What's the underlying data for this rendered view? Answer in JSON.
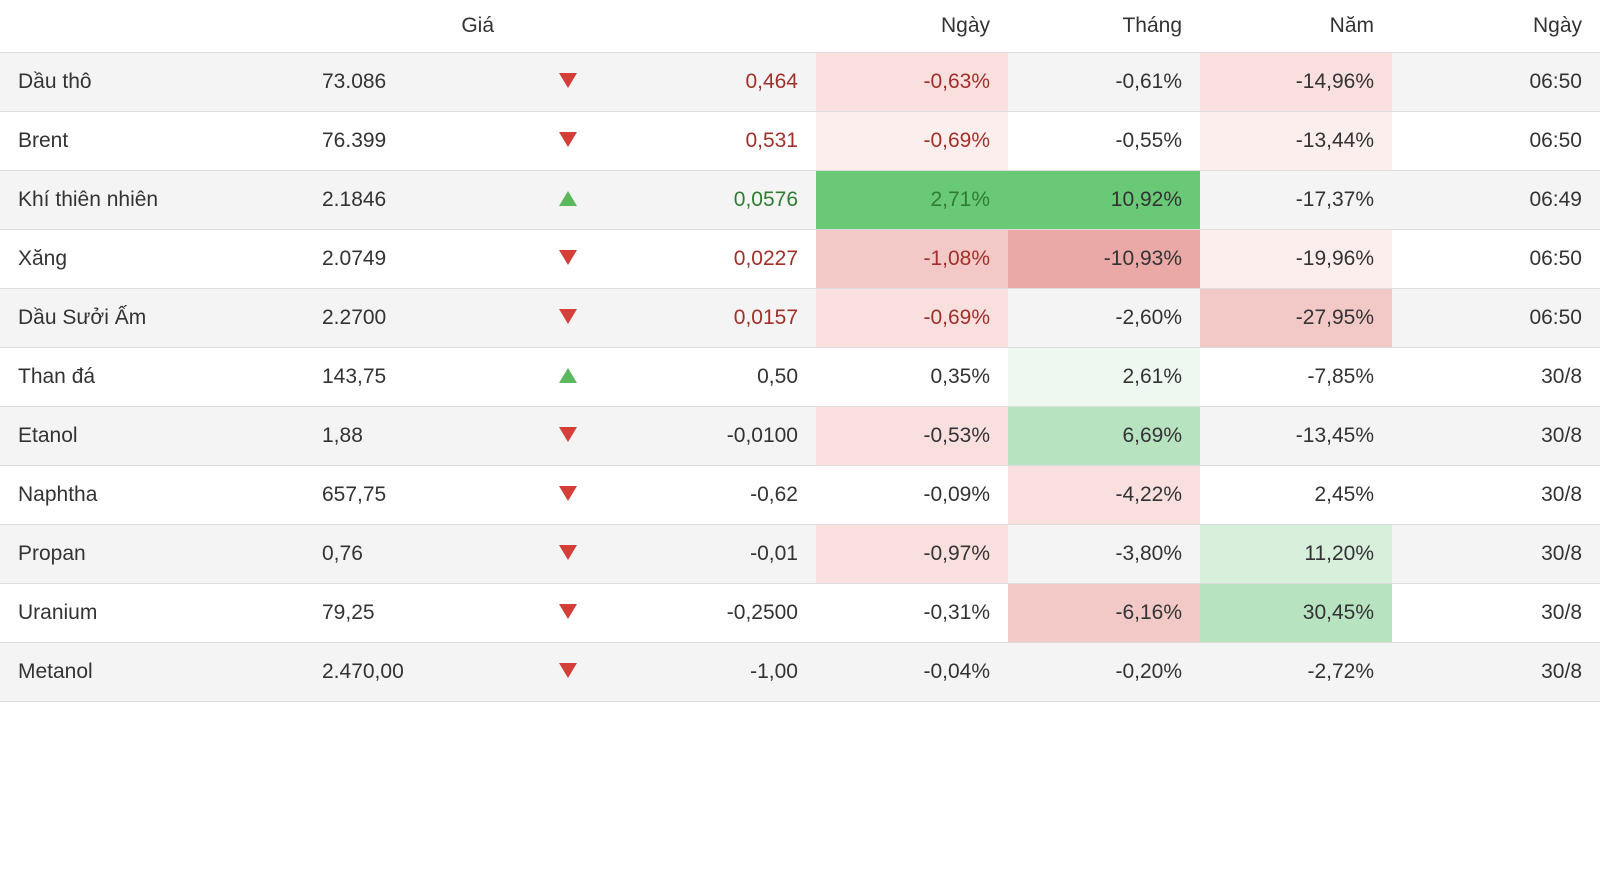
{
  "table": {
    "type": "table",
    "columns": {
      "name": {
        "label": "",
        "width_pct": 19,
        "align": "left"
      },
      "price": {
        "label": "Giá",
        "width_pct": 13,
        "align": "left"
      },
      "dir": {
        "label": "",
        "width_pct": 7,
        "align": "center"
      },
      "change": {
        "label": "",
        "width_pct": 12,
        "align": "right"
      },
      "day": {
        "label": "Ngày",
        "width_pct": 12,
        "align": "right"
      },
      "month": {
        "label": "Tháng",
        "width_pct": 12,
        "align": "right"
      },
      "year": {
        "label": "Năm",
        "width_pct": 12,
        "align": "right"
      },
      "date": {
        "label": "Ngày",
        "width_pct": 13,
        "align": "right"
      }
    },
    "colors": {
      "up_arrow": "#5cb85c",
      "down_arrow": "#d43f3a",
      "text_red": "#a12f2a",
      "text_green": "#2e7d32",
      "row_even_bg": "#f4f4f4",
      "row_odd_bg": "#ffffff",
      "border": "#dddddd",
      "heat": {
        "neg_faint": "#fdeeee",
        "neg_light": "#f9e0df",
        "neg_med": "#f3c9c7",
        "neg_strong": "#eaa9a6",
        "pos_faint": "#eef8f0",
        "pos_light": "#d7efdb",
        "pos_med": "#b7e3c0",
        "pos_strong": "#69c976"
      }
    },
    "rows": [
      {
        "name": "Dầu thô",
        "price": "73.086",
        "dir": "down",
        "change": "0,464",
        "change_color": "red",
        "day": {
          "v": "-0,63%",
          "bg": "#f9e0df",
          "fg": "#a12f2a"
        },
        "month": {
          "v": "-0,61%",
          "bg": null,
          "fg": null
        },
        "year": {
          "v": "-14,96%",
          "bg": "#f9e0df",
          "fg": null
        },
        "date": "06:50"
      },
      {
        "name": "Brent",
        "price": "76.399",
        "dir": "down",
        "change": "0,531",
        "change_color": "red",
        "day": {
          "v": "-0,69%",
          "bg": "#fdeeee",
          "fg": "#a12f2a"
        },
        "month": {
          "v": "-0,55%",
          "bg": null,
          "fg": null
        },
        "year": {
          "v": "-13,44%",
          "bg": "#fdeeee",
          "fg": null
        },
        "date": "06:50"
      },
      {
        "name": "Khí thiên nhiên",
        "price": "2.1846",
        "dir": "up",
        "change": "0,0576",
        "change_color": "green",
        "day": {
          "v": "2,71%",
          "bg": "#69c976",
          "fg": "#2e7d32"
        },
        "month": {
          "v": "10,92%",
          "bg": "#69c976",
          "fg": null
        },
        "year": {
          "v": "-17,37%",
          "bg": null,
          "fg": null
        },
        "date": "06:49"
      },
      {
        "name": "Xăng",
        "price": "2.0749",
        "dir": "down",
        "change": "0,0227",
        "change_color": "red",
        "day": {
          "v": "-1,08%",
          "bg": "#f3c9c7",
          "fg": "#a12f2a"
        },
        "month": {
          "v": "-10,93%",
          "bg": "#eaa9a6",
          "fg": null
        },
        "year": {
          "v": "-19,96%",
          "bg": "#fdeeee",
          "fg": null
        },
        "date": "06:50"
      },
      {
        "name": "Dầu Sưởi Ấm",
        "price": "2.2700",
        "dir": "down",
        "change": "0,0157",
        "change_color": "red",
        "day": {
          "v": "-0,69%",
          "bg": "#f9e0df",
          "fg": "#a12f2a"
        },
        "month": {
          "v": "-2,60%",
          "bg": null,
          "fg": null
        },
        "year": {
          "v": "-27,95%",
          "bg": "#f3c9c7",
          "fg": null
        },
        "date": "06:50"
      },
      {
        "name": "Than đá",
        "price": "143,75",
        "dir": "up",
        "change": "0,50",
        "change_color": null,
        "day": {
          "v": "0,35%",
          "bg": null,
          "fg": null
        },
        "month": {
          "v": "2,61%",
          "bg": "#eef8f0",
          "fg": null
        },
        "year": {
          "v": "-7,85%",
          "bg": null,
          "fg": null
        },
        "date": "30/8"
      },
      {
        "name": "Etanol",
        "price": "1,88",
        "dir": "down",
        "change": "-0,0100",
        "change_color": null,
        "day": {
          "v": "-0,53%",
          "bg": "#f9e0df",
          "fg": null
        },
        "month": {
          "v": "6,69%",
          "bg": "#b7e3c0",
          "fg": null
        },
        "year": {
          "v": "-13,45%",
          "bg": null,
          "fg": null
        },
        "date": "30/8"
      },
      {
        "name": "Naphtha",
        "price": "657,75",
        "dir": "down",
        "change": "-0,62",
        "change_color": null,
        "day": {
          "v": "-0,09%",
          "bg": null,
          "fg": null
        },
        "month": {
          "v": "-4,22%",
          "bg": "#f9e0df",
          "fg": null
        },
        "year": {
          "v": "2,45%",
          "bg": null,
          "fg": null
        },
        "date": "30/8"
      },
      {
        "name": "Propan",
        "price": "0,76",
        "dir": "down",
        "change": "-0,01",
        "change_color": null,
        "day": {
          "v": "-0,97%",
          "bg": "#f9e0df",
          "fg": null
        },
        "month": {
          "v": "-3,80%",
          "bg": null,
          "fg": null
        },
        "year": {
          "v": "11,20%",
          "bg": "#d7efdb",
          "fg": null
        },
        "date": "30/8"
      },
      {
        "name": "Uranium",
        "price": "79,25",
        "dir": "down",
        "change": "-0,2500",
        "change_color": null,
        "day": {
          "v": "-0,31%",
          "bg": null,
          "fg": null
        },
        "month": {
          "v": "-6,16%",
          "bg": "#f3c9c7",
          "fg": null
        },
        "year": {
          "v": "30,45%",
          "bg": "#b7e3c0",
          "fg": null
        },
        "date": "30/8"
      },
      {
        "name": "Metanol",
        "price": "2.470,00",
        "dir": "down",
        "change": "-1,00",
        "change_color": null,
        "day": {
          "v": "-0,04%",
          "bg": null,
          "fg": null
        },
        "month": {
          "v": "-0,20%",
          "bg": null,
          "fg": null
        },
        "year": {
          "v": "-2,72%",
          "bg": null,
          "fg": null
        },
        "date": "30/8"
      }
    ]
  }
}
